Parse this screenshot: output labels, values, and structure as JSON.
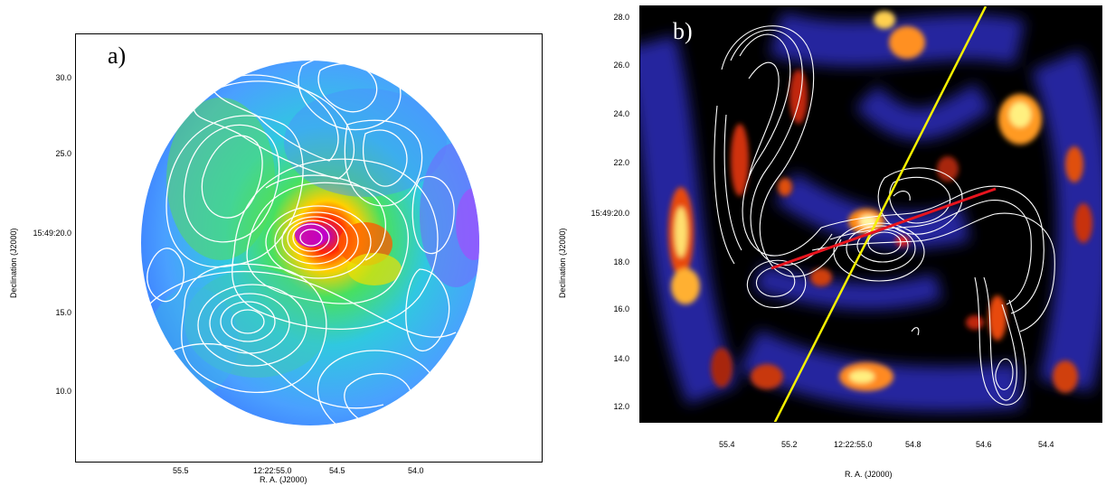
{
  "panel_a": {
    "label": "a)",
    "xlabel": "R. A. (J2000)",
    "ylabel": "Declination (J2000)",
    "xticks": [
      "55.5",
      "12:22:55.0",
      "54.5",
      "54.0"
    ],
    "yticks": [
      "30.0",
      "25.0",
      "15:49:20.0",
      "15.0",
      "10.0"
    ]
  },
  "panel_b": {
    "label": "b)",
    "xlabel": "R. A. (J2000)",
    "ylabel": "Declination (J2000)",
    "xticks": [
      "55.4",
      "55.2",
      "12:22:55.0",
      "54.8",
      "54.6",
      "54.4"
    ],
    "yticks": [
      "28.0",
      "26.0",
      "24.0",
      "22.0",
      "15:49:20.0",
      "18.0",
      "16.0",
      "14.0",
      "12.0"
    ]
  },
  "colors": {
    "contour": "#ffffff",
    "line_yellow": "#f5f000",
    "line_red": "#e8141e",
    "background_b": "#000000"
  }
}
